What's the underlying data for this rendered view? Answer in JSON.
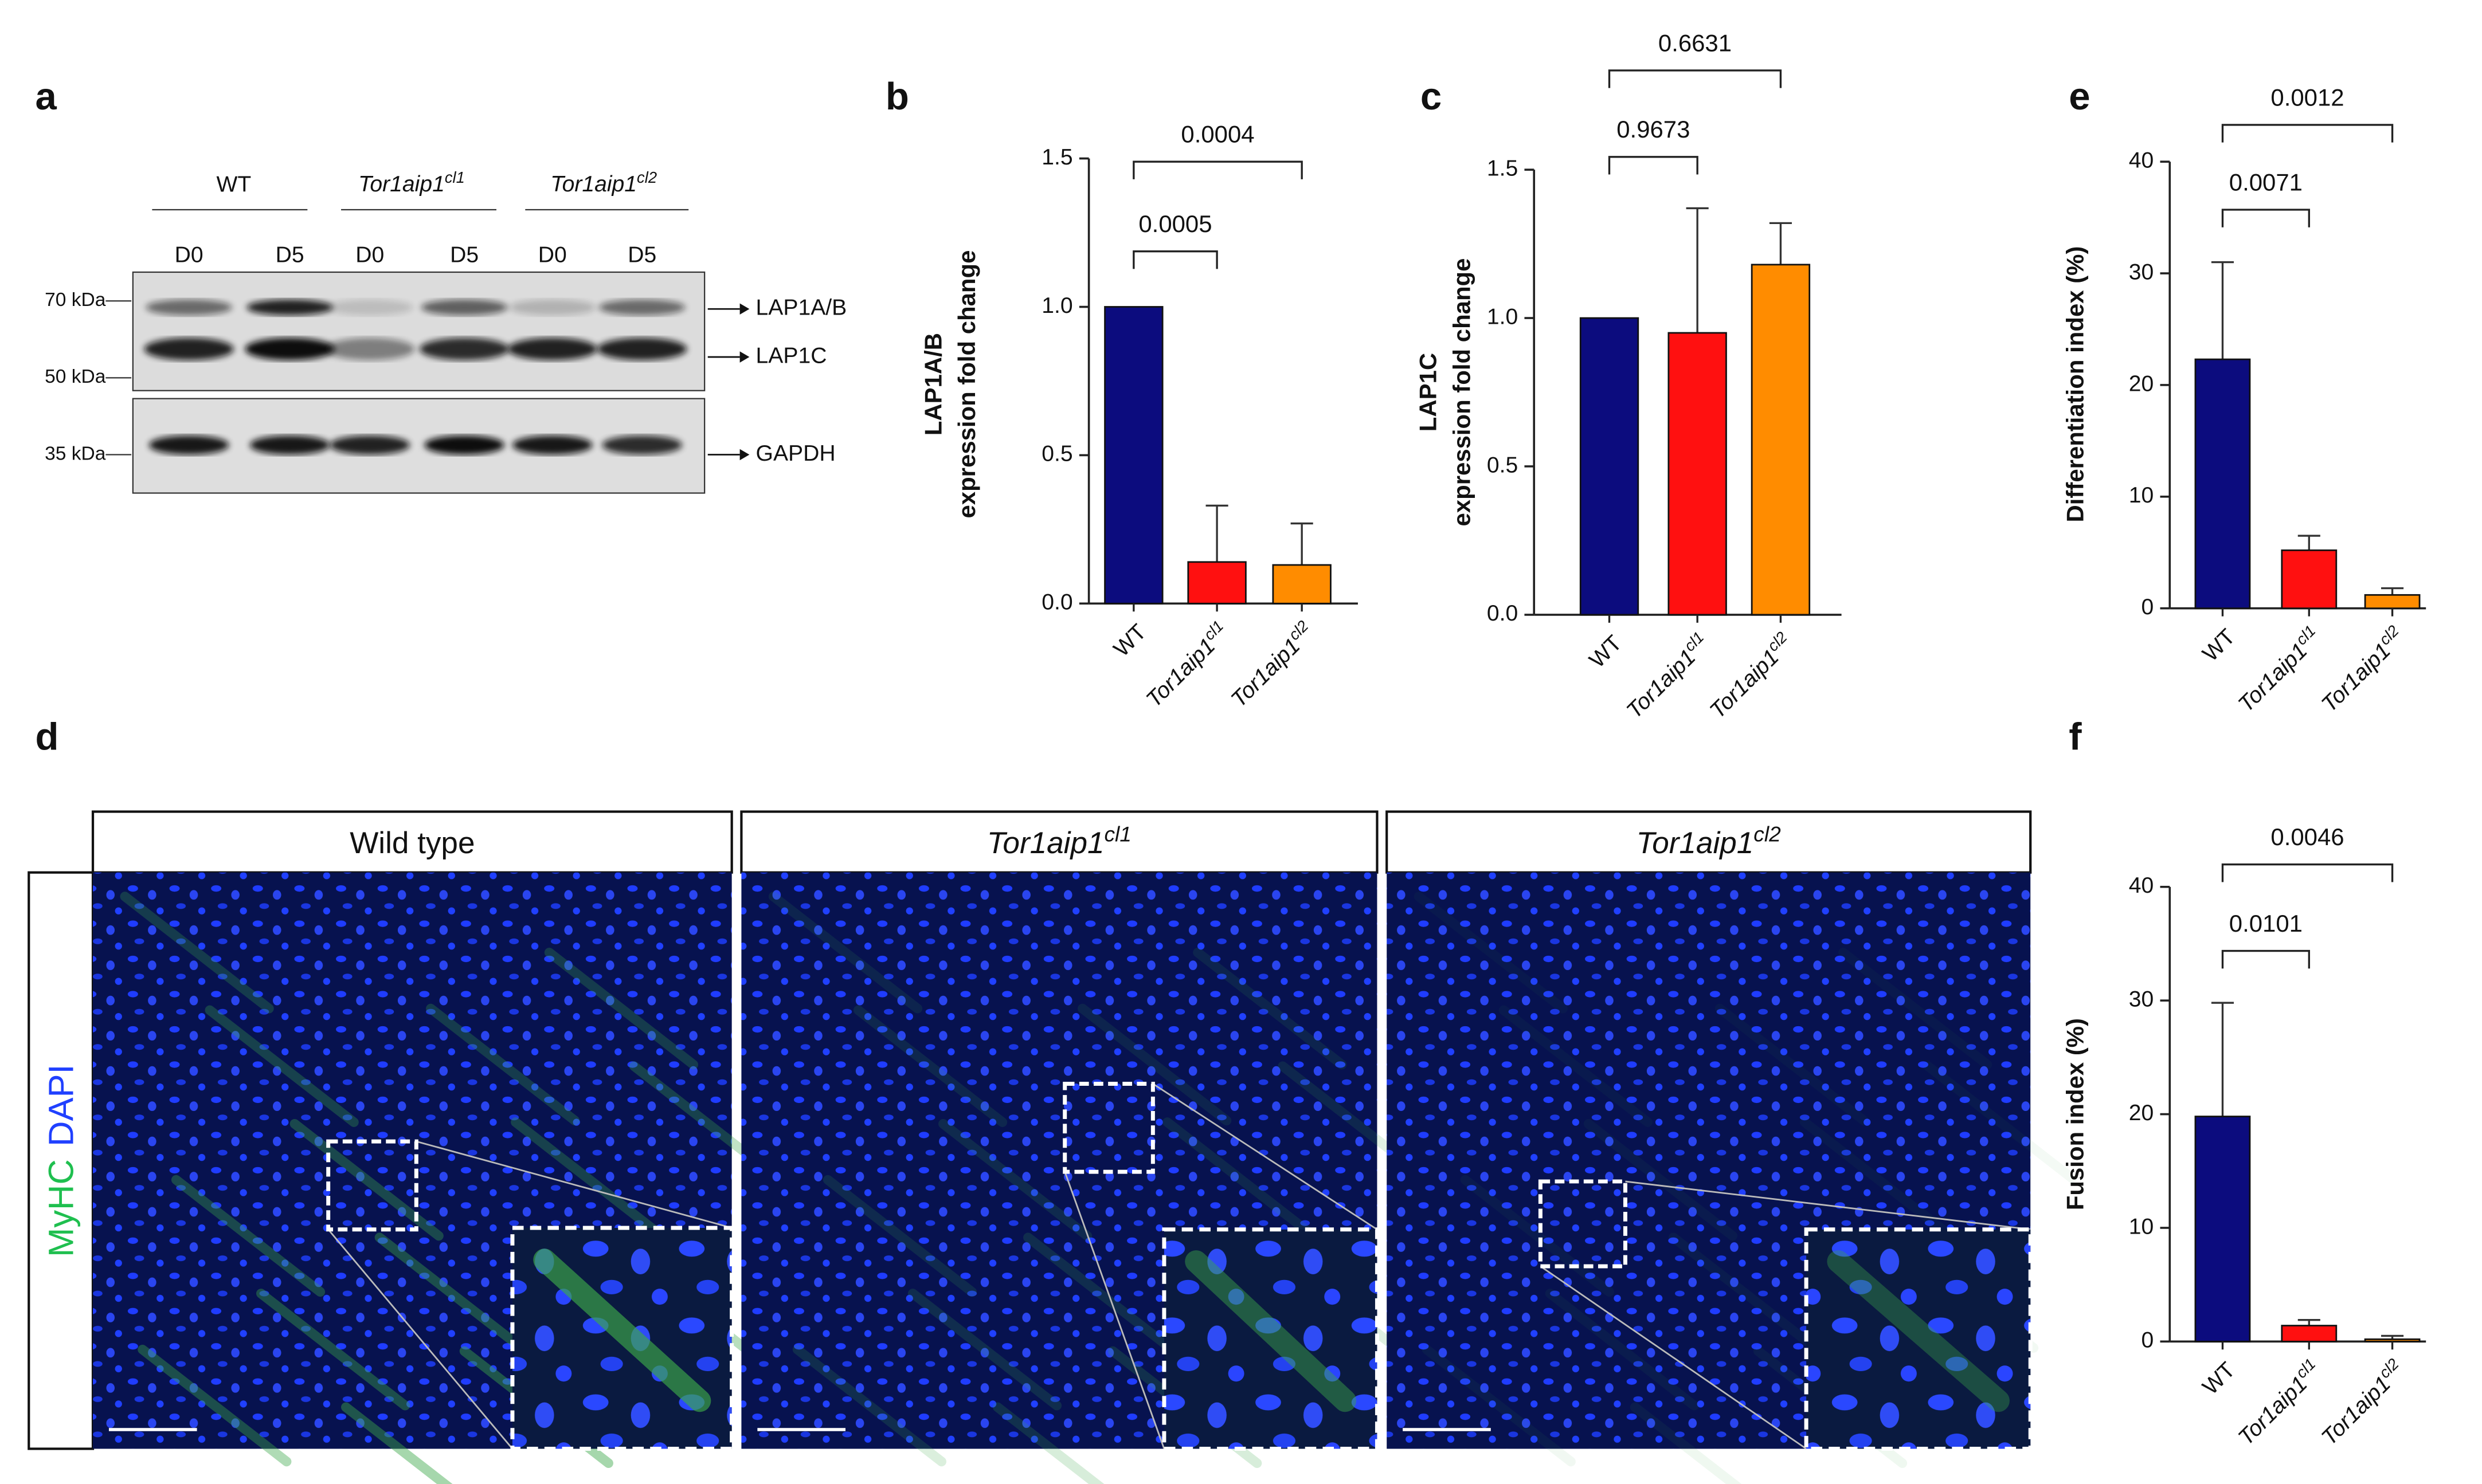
{
  "blot": {
    "letter": "a",
    "groups": [
      "WT",
      "Tor1aip1cl1",
      "Tor1aip1cl2"
    ],
    "lanes": [
      "D0",
      "D5",
      "D0",
      "D5",
      "D0",
      "D5"
    ],
    "markers": [
      "70 kDa",
      "50 kDa",
      "35 kDa"
    ],
    "bands": [
      "LAP1A/B",
      "LAP1C",
      "GAPDH"
    ]
  },
  "microscopy": {
    "letter": "d",
    "conditions": [
      "Wild type",
      "Tor1aip1cl1",
      "Tor1aip1cl2"
    ],
    "stain": [
      "MyHC",
      "DAPI"
    ]
  },
  "chart_data": [
    {
      "type": "bar",
      "letter": "b",
      "ylabel": [
        "LAP1A/B",
        "expression fold change"
      ],
      "categories": [
        "WT",
        "Tor1aip1cl1",
        "Tor1aip1cl2"
      ],
      "values": [
        1.0,
        0.14,
        0.13
      ],
      "errors": [
        null,
        0.19,
        0.14
      ],
      "colors": [
        "#0c0c7e",
        "#ff1010",
        "#ff8c00"
      ],
      "ylim": [
        0,
        1.5
      ],
      "yticks": [
        {
          "value": 0,
          "label": "0.0"
        },
        0.5,
        {
          "value": 1,
          "label": "1.0"
        },
        1.5
      ],
      "comparisons": [
        "0.0005",
        "0.0004"
      ]
    },
    {
      "type": "bar",
      "letter": "c",
      "ylabel": [
        "LAP1C",
        "expression fold change"
      ],
      "categories": [
        "WT",
        "Tor1aip1cl1",
        "Tor1aip1cl2"
      ],
      "values": [
        1.0,
        0.95,
        1.18
      ],
      "errors": [
        null,
        0.42,
        0.14
      ],
      "colors": [
        "#0c0c7e",
        "#ff1010",
        "#ff8c00"
      ],
      "ylim": [
        0,
        1.5
      ],
      "yticks": [
        {
          "value": 0,
          "label": "0.0"
        },
        0.5,
        {
          "value": 1,
          "label": "1.0"
        },
        1.5
      ],
      "comparisons": [
        "0.9673",
        "0.6631"
      ]
    },
    {
      "type": "bar",
      "letter": "e",
      "ylabel": [
        "Differentiation index (%)"
      ],
      "categories": [
        "WT",
        "Tor1aip1cl1",
        "Tor1aip1cl2"
      ],
      "values": [
        22.3,
        5.2,
        1.2
      ],
      "errors": [
        8.7,
        1.3,
        0.6
      ],
      "colors": [
        "#0c0c7e",
        "#ff1010",
        "#ff8c00"
      ],
      "ylim": [
        0,
        40
      ],
      "yticks": [
        0,
        10,
        20,
        30,
        40
      ],
      "comparisons": [
        "0.0071",
        "0.0012"
      ]
    },
    {
      "type": "bar",
      "letter": "f",
      "ylabel": [
        "Fusion index (%)"
      ],
      "categories": [
        "WT",
        "Tor1aip1cl1",
        "Tor1aip1cl2"
      ],
      "values": [
        19.8,
        1.4,
        0.2
      ],
      "errors": [
        10.0,
        0.5,
        0.3
      ],
      "colors": [
        "#0c0c7e",
        "#ff1010",
        "#ff8c00"
      ],
      "ylim": [
        0,
        40
      ],
      "yticks": [
        0,
        10,
        20,
        30,
        40
      ],
      "comparisons": [
        "0.0101",
        "0.0046"
      ]
    }
  ]
}
